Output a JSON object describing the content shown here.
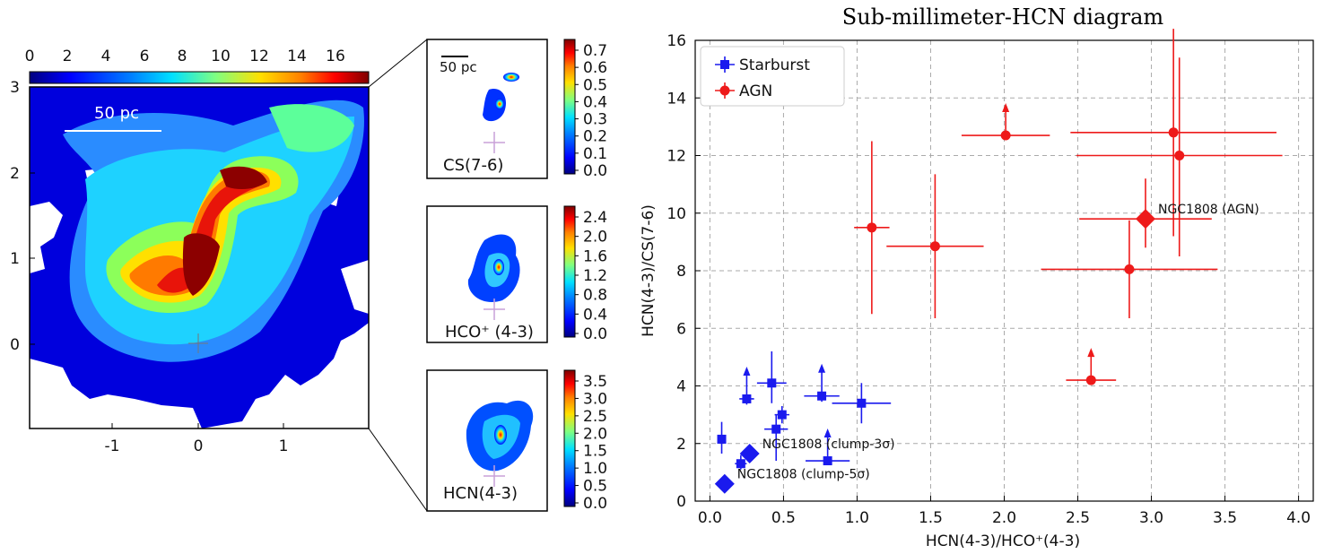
{
  "colors": {
    "starburst": "#1a1aee",
    "agn": "#ee1a1a",
    "grid": "#aaaaaa"
  },
  "colormap_stops": [
    "#00007f",
    "#0000ff",
    "#0080ff",
    "#00e0ff",
    "#80ff80",
    "#ffe000",
    "#ff8000",
    "#ff0000",
    "#7f0000"
  ],
  "map_panel": {
    "colorbar_ticks": [
      "0",
      "2",
      "4",
      "6",
      "8",
      "10",
      "12",
      "14",
      "16"
    ],
    "x_ticks": [
      "-1",
      "0",
      "1"
    ],
    "y_ticks": [
      "3",
      "2",
      "1",
      "0"
    ],
    "scale_label": "50 pc"
  },
  "insets": [
    {
      "label": "CS(7-6)",
      "scale_label": "50 pc",
      "ticks": [
        "0.7",
        "0.6",
        "0.5",
        "0.4",
        "0.3",
        "0.2",
        "0.1",
        "0.0"
      ]
    },
    {
      "label": "HCO⁺ (4-3)",
      "ticks": [
        "2.4",
        "2.0",
        "1.6",
        "1.2",
        "0.8",
        "0.4",
        "0.0"
      ]
    },
    {
      "label": "HCN(4-3)",
      "ticks": [
        "3.5",
        "3.0",
        "2.5",
        "2.0",
        "1.5",
        "1.0",
        "0.5",
        "0.0"
      ]
    }
  ],
  "chart_data": {
    "type": "scatter",
    "title": "Sub-millimeter-HCN diagram",
    "xlabel": "HCN(4-3)/HCO⁺(4-3)",
    "ylabel": "HCN(4-3)/CS(7-6)",
    "xlim": [
      -0.1,
      4.1
    ],
    "ylim": [
      0,
      16
    ],
    "xticks": [
      "0.0",
      "0.5",
      "1.0",
      "1.5",
      "2.0",
      "2.5",
      "3.0",
      "3.5",
      "4.0"
    ],
    "yticks": [
      "0",
      "2",
      "4",
      "6",
      "8",
      "10",
      "12",
      "14",
      "16"
    ],
    "grid": true,
    "legend_position": "top-left",
    "series": [
      {
        "name": "Starburst",
        "marker": "square",
        "points": [
          {
            "x": 0.25,
            "y": 3.55,
            "xerr": 0.05,
            "yerr_lo": 0.2,
            "yerr_hi": 0.0,
            "lower_limit": true
          },
          {
            "x": 0.42,
            "y": 4.1,
            "xerr": 0.1,
            "yerr_lo": 0.7,
            "yerr_hi": 1.1
          },
          {
            "x": 0.49,
            "y": 3.0,
            "xerr": 0.05,
            "yerr_lo": 0.3,
            "yerr_hi": 0.3
          },
          {
            "x": 0.45,
            "y": 2.5,
            "xerr": 0.08,
            "yerr_lo": 1.1,
            "yerr_hi": 0.5
          },
          {
            "x": 0.76,
            "y": 3.65,
            "xerr": 0.12,
            "yerr_lo": 0.2,
            "yerr_hi": 0.0,
            "lower_limit": true
          },
          {
            "x": 1.03,
            "y": 3.4,
            "xerr": 0.2,
            "yerr_lo": 0.7,
            "yerr_hi": 0.7
          },
          {
            "x": 0.8,
            "y": 1.4,
            "xerr": 0.15,
            "yerr_lo": 0.0,
            "yerr_hi": 0.0,
            "lower_limit": true
          },
          {
            "x": 0.08,
            "y": 2.15,
            "xerr": 0.02,
            "yerr_lo": 0.5,
            "yerr_hi": 0.6
          },
          {
            "x": 0.21,
            "y": 1.3,
            "xerr": 0.04,
            "yerr_lo": 0.2,
            "yerr_hi": 0.3
          }
        ]
      },
      {
        "name": "AGN",
        "marker": "circle",
        "points": [
          {
            "x": 1.1,
            "y": 9.5,
            "xerr": 0.12,
            "yerr_lo": 3.0,
            "yerr_hi": 3.0
          },
          {
            "x": 1.53,
            "y": 8.85,
            "xerr": 0.33,
            "yerr_lo": 2.5,
            "yerr_hi": 2.5
          },
          {
            "x": 2.01,
            "y": 12.7,
            "xerr": 0.3,
            "yerr_lo": 0.0,
            "yerr_hi": 0.0,
            "lower_limit": true
          },
          {
            "x": 2.85,
            "y": 8.05,
            "xerr": 0.6,
            "yerr_lo": 1.7,
            "yerr_hi": 1.7
          },
          {
            "x": 3.15,
            "y": 12.8,
            "xerr": 0.7,
            "yerr_lo": 3.6,
            "yerr_hi": 3.6
          },
          {
            "x": 3.19,
            "y": 12.0,
            "xerr": 0.7,
            "yerr_lo": 3.5,
            "yerr_hi": 3.4
          },
          {
            "x": 2.59,
            "y": 4.2,
            "xerr": 0.17,
            "yerr_lo": 0.0,
            "yerr_hi": 0.0,
            "lower_limit": true
          }
        ]
      }
    ],
    "highlights": [
      {
        "label": "NGC1808 (AGN)",
        "x": 2.96,
        "y": 9.8,
        "color": "agn",
        "xerr": 0.45,
        "yerr_lo": 1.0,
        "yerr_hi": 1.4
      },
      {
        "label": "NGC1808 (clump-3σ)",
        "x": 0.27,
        "y": 1.65,
        "color": "starburst"
      },
      {
        "label": "NGC1808 (clump-5σ)",
        "x": 0.1,
        "y": 0.6,
        "color": "starburst"
      }
    ]
  }
}
